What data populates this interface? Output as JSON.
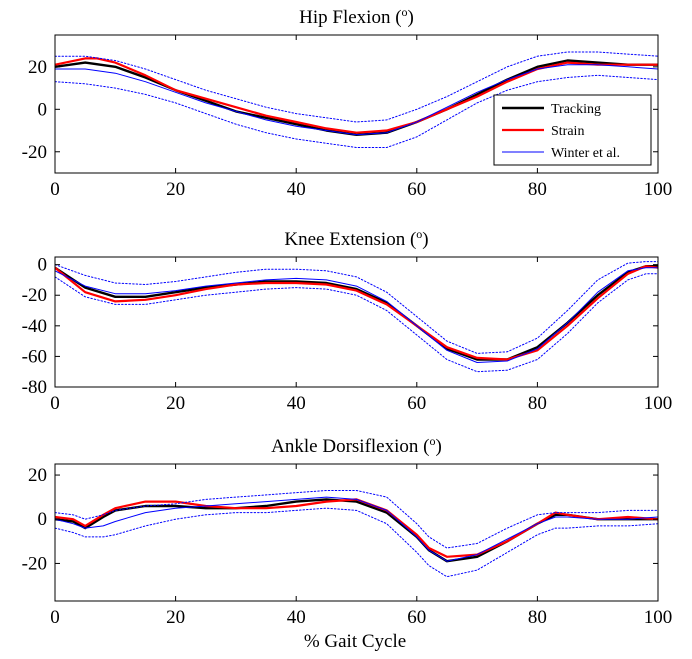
{
  "figure": {
    "xlabel": "% Gait Cycle"
  },
  "chart_data": [
    {
      "type": "line",
      "title": "Hip Flexion (o)",
      "title_main": "Hip Flexion (",
      "title_sup": "o",
      "title_end": ")",
      "xlim": [
        0,
        100
      ],
      "ylim": [
        -30,
        35
      ],
      "xticks": [
        0,
        20,
        40,
        60,
        80,
        100
      ],
      "yticks": [
        -20,
        0,
        20
      ],
      "legend": {
        "position": "right",
        "entries": [
          "Tracking",
          "Strain",
          "Winter et al."
        ]
      },
      "series": [
        {
          "name": "Tracking",
          "color": "#000000",
          "style": "solid",
          "x": [
            0,
            5,
            10,
            15,
            20,
            25,
            30,
            35,
            40,
            45,
            50,
            55,
            60,
            65,
            70,
            75,
            80,
            85,
            90,
            95,
            100
          ],
          "y": [
            20,
            22,
            20,
            15,
            9,
            4,
            -1,
            -4,
            -7,
            -10,
            -12,
            -11,
            -6,
            0,
            7,
            14,
            20,
            23,
            22,
            21,
            21
          ]
        },
        {
          "name": "Strain",
          "color": "#ff0000",
          "style": "solid",
          "x": [
            0,
            5,
            7,
            10,
            15,
            20,
            25,
            30,
            35,
            40,
            45,
            50,
            55,
            60,
            65,
            70,
            75,
            80,
            85,
            90,
            95,
            100
          ],
          "y": [
            21,
            24,
            24,
            22,
            16,
            9,
            5,
            1,
            -3,
            -6,
            -9,
            -11,
            -10,
            -6,
            0,
            6,
            13,
            19,
            22,
            21,
            21,
            21
          ]
        },
        {
          "name": "Winter et al.",
          "color": "#0000ff",
          "style": "solid",
          "x": [
            0,
            5,
            10,
            15,
            20,
            25,
            30,
            35,
            40,
            45,
            50,
            55,
            60,
            65,
            70,
            75,
            80,
            85,
            90,
            95,
            100
          ],
          "y": [
            19,
            19,
            17,
            13,
            8,
            3,
            -1,
            -5,
            -8,
            -10,
            -12,
            -11,
            -6,
            1,
            8,
            14,
            19,
            21,
            21,
            20,
            19
          ]
        },
        {
          "name": "Winter et al. upper",
          "color": "#0000ff",
          "style": "dotted",
          "x": [
            0,
            5,
            10,
            15,
            20,
            25,
            30,
            35,
            40,
            45,
            50,
            55,
            60,
            65,
            70,
            75,
            80,
            85,
            90,
            95,
            100
          ],
          "y": [
            25,
            25,
            23,
            19,
            14,
            9,
            5,
            1,
            -2,
            -4,
            -6,
            -5,
            0,
            6,
            13,
            20,
            25,
            27,
            27,
            26,
            25
          ]
        },
        {
          "name": "Winter et al. lower",
          "color": "#0000ff",
          "style": "dotted",
          "x": [
            0,
            5,
            10,
            15,
            20,
            25,
            30,
            35,
            40,
            45,
            50,
            55,
            60,
            65,
            70,
            75,
            80,
            85,
            90,
            95,
            100
          ],
          "y": [
            13,
            12,
            10,
            7,
            3,
            -2,
            -7,
            -11,
            -14,
            -16,
            -18,
            -18,
            -13,
            -5,
            3,
            9,
            13,
            15,
            16,
            15,
            14
          ]
        }
      ]
    },
    {
      "type": "line",
      "title": "Knee Extension (o)",
      "title_main": "Knee Extension (",
      "title_sup": "o",
      "title_end": ")",
      "xlim": [
        0,
        100
      ],
      "ylim": [
        -80,
        5
      ],
      "xticks": [
        0,
        20,
        40,
        60,
        80,
        100
      ],
      "yticks": [
        -80,
        -60,
        -40,
        -20,
        0
      ],
      "series": [
        {
          "name": "Tracking",
          "color": "#000000",
          "style": "solid",
          "x": [
            0,
            5,
            10,
            15,
            20,
            25,
            30,
            35,
            40,
            45,
            50,
            55,
            60,
            65,
            70,
            75,
            80,
            85,
            90,
            95,
            98,
            100
          ],
          "y": [
            -2,
            -15,
            -21,
            -21,
            -18,
            -15,
            -13,
            -11,
            -11,
            -12,
            -16,
            -25,
            -40,
            -55,
            -62,
            -62,
            -54,
            -38,
            -20,
            -5,
            -1,
            -1
          ]
        },
        {
          "name": "Strain",
          "color": "#ff0000",
          "style": "solid",
          "x": [
            0,
            5,
            10,
            15,
            20,
            25,
            30,
            35,
            40,
            45,
            50,
            55,
            60,
            65,
            70,
            75,
            80,
            85,
            90,
            95,
            98,
            100
          ],
          "y": [
            -2,
            -18,
            -24,
            -23,
            -20,
            -16,
            -13,
            -12,
            -12,
            -13,
            -17,
            -26,
            -40,
            -54,
            -61,
            -62,
            -56,
            -40,
            -22,
            -6,
            -1,
            -2
          ]
        },
        {
          "name": "Winter et al.",
          "color": "#0000ff",
          "style": "solid",
          "x": [
            0,
            5,
            10,
            15,
            20,
            25,
            30,
            35,
            40,
            45,
            50,
            55,
            60,
            65,
            70,
            75,
            80,
            85,
            90,
            95,
            98,
            100
          ],
          "y": [
            -4,
            -14,
            -19,
            -19,
            -17,
            -14,
            -12,
            -10,
            -9,
            -10,
            -14,
            -24,
            -40,
            -56,
            -64,
            -63,
            -55,
            -38,
            -18,
            -4,
            -2,
            -2
          ]
        },
        {
          "name": "Winter et al. upper",
          "color": "#0000ff",
          "style": "dotted",
          "x": [
            0,
            5,
            10,
            15,
            20,
            25,
            30,
            35,
            40,
            45,
            50,
            55,
            60,
            65,
            70,
            75,
            80,
            85,
            90,
            95,
            98,
            100
          ],
          "y": [
            0,
            -7,
            -12,
            -13,
            -11,
            -8,
            -5,
            -3,
            -3,
            -4,
            -8,
            -18,
            -34,
            -50,
            -58,
            -57,
            -48,
            -30,
            -10,
            1,
            2,
            2
          ]
        },
        {
          "name": "Winter et al. lower",
          "color": "#0000ff",
          "style": "dotted",
          "x": [
            0,
            5,
            10,
            15,
            20,
            25,
            30,
            35,
            40,
            45,
            50,
            55,
            60,
            65,
            70,
            75,
            80,
            85,
            90,
            95,
            98,
            100
          ],
          "y": [
            -8,
            -21,
            -26,
            -26,
            -23,
            -20,
            -18,
            -16,
            -15,
            -16,
            -20,
            -30,
            -46,
            -62,
            -70,
            -69,
            -62,
            -45,
            -25,
            -10,
            -6,
            -6
          ]
        }
      ]
    },
    {
      "type": "line",
      "title": "Ankle Dorsiflexion (o)",
      "title_main": "Ankle Dorsiflexion (",
      "title_sup": "o",
      "title_end": ")",
      "xlim": [
        0,
        100
      ],
      "ylim": [
        -37,
        25
      ],
      "xticks": [
        0,
        20,
        40,
        60,
        80,
        100
      ],
      "yticks": [
        -20,
        0,
        20
      ],
      "series": [
        {
          "name": "Tracking",
          "color": "#000000",
          "style": "solid",
          "x": [
            0,
            3,
            5,
            8,
            10,
            15,
            20,
            25,
            30,
            35,
            40,
            45,
            50,
            55,
            60,
            62,
            65,
            70,
            75,
            80,
            83,
            85,
            90,
            95,
            100
          ],
          "y": [
            0,
            -1,
            -4,
            1,
            4,
            6,
            6,
            5,
            5,
            6,
            8,
            9,
            8,
            3,
            -8,
            -14,
            -19,
            -17,
            -10,
            -2,
            2,
            2,
            0,
            0,
            0
          ]
        },
        {
          "name": "Strain",
          "color": "#ff0000",
          "style": "solid",
          "x": [
            0,
            3,
            5,
            8,
            10,
            15,
            20,
            25,
            30,
            35,
            40,
            45,
            50,
            55,
            60,
            62,
            65,
            70,
            75,
            80,
            83,
            85,
            90,
            95,
            100
          ],
          "y": [
            1,
            0,
            -3,
            2,
            5,
            8,
            8,
            6,
            5,
            5,
            6,
            8,
            9,
            4,
            -7,
            -13,
            -17,
            -16,
            -10,
            -2,
            3,
            2,
            0,
            1,
            0
          ]
        },
        {
          "name": "Winter et al.",
          "color": "#0000ff",
          "style": "solid",
          "x": [
            0,
            3,
            5,
            8,
            10,
            15,
            20,
            25,
            30,
            35,
            40,
            45,
            50,
            55,
            60,
            62,
            65,
            70,
            75,
            80,
            83,
            85,
            90,
            95,
            100
          ],
          "y": [
            0,
            -2,
            -4,
            -3,
            -1,
            3,
            5,
            6,
            7,
            8,
            9,
            10,
            9,
            4,
            -8,
            -14,
            -19,
            -16,
            -9,
            -2,
            1,
            1,
            0,
            0,
            1
          ]
        },
        {
          "name": "Winter et al. upper",
          "color": "#0000ff",
          "style": "dotted",
          "x": [
            0,
            3,
            5,
            8,
            10,
            15,
            20,
            25,
            30,
            35,
            40,
            45,
            50,
            55,
            60,
            62,
            65,
            70,
            75,
            80,
            83,
            85,
            90,
            95,
            100
          ],
          "y": [
            3,
            2,
            0,
            2,
            4,
            6,
            7,
            9,
            10,
            11,
            12,
            13,
            13,
            10,
            -2,
            -8,
            -13,
            -11,
            -4,
            2,
            3,
            3,
            3,
            4,
            4
          ]
        },
        {
          "name": "Winter et al. lower",
          "color": "#0000ff",
          "style": "dotted",
          "x": [
            0,
            3,
            5,
            8,
            10,
            15,
            20,
            25,
            30,
            35,
            40,
            45,
            50,
            55,
            60,
            62,
            65,
            70,
            75,
            80,
            83,
            85,
            90,
            95,
            100
          ],
          "y": [
            -4,
            -6,
            -8,
            -8,
            -7,
            -3,
            0,
            2,
            3,
            3,
            4,
            5,
            4,
            -2,
            -15,
            -21,
            -26,
            -23,
            -15,
            -7,
            -4,
            -4,
            -3,
            -3,
            -2
          ]
        }
      ]
    }
  ]
}
